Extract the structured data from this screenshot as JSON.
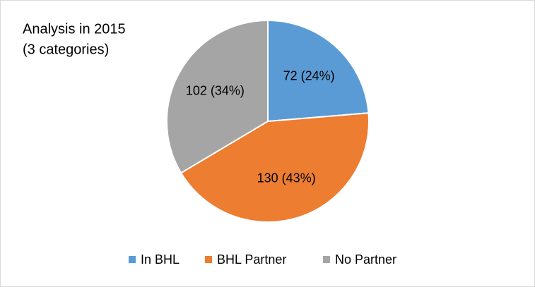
{
  "chart_data": {
    "type": "pie",
    "title": "Analysis in 2015",
    "subtitle": "(3 categories)",
    "categories": [
      "In BHL",
      "BHL Partner",
      "No Partner"
    ],
    "values": [
      72,
      130,
      102
    ],
    "value_labels": [
      "72 (24%)",
      "130 (43%)",
      "102 (34%)"
    ],
    "colors": [
      "#5b9bd5",
      "#ed7d31",
      "#a5a5a5"
    ],
    "legend": "bottom"
  }
}
